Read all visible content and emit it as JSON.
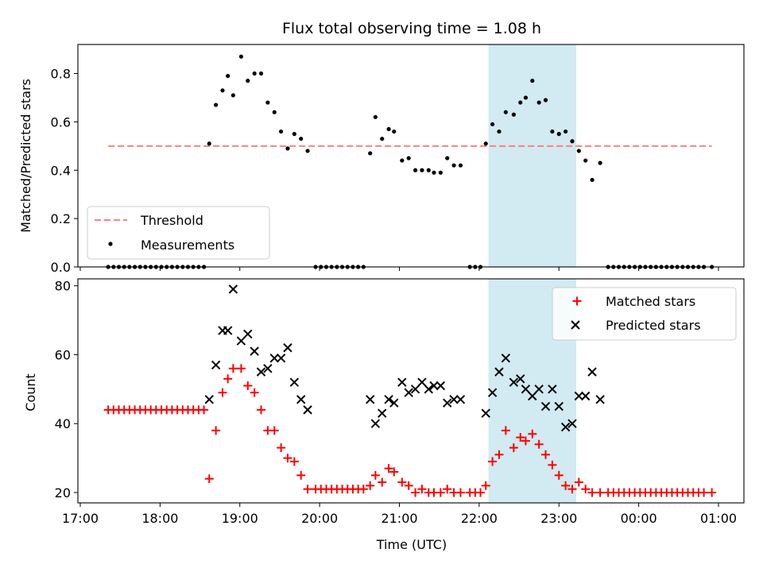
{
  "chart_data": [
    {
      "type": "scatter",
      "title": "Flux total observing time = 1.08 h",
      "ylabel": "Matched/Predicted stars",
      "xlim": [
        "17:00",
        "01:00"
      ],
      "ylim": [
        0,
        0.92
      ],
      "yticks": [
        "0.0",
        "0.2",
        "0.4",
        "0.6",
        "0.8"
      ],
      "ytick_values": [
        0,
        0.2,
        0.4,
        0.6,
        0.8
      ],
      "highlight_span": {
        "start": "22:07",
        "end": "23:13",
        "color": "#add8e6"
      },
      "legend_position": "lower-left",
      "threshold": {
        "name": "Threshold",
        "value": 0.5,
        "x_start": "17:21",
        "x_end": "00:55",
        "color": "#ff7f7f"
      },
      "series": [
        {
          "name": "Measurements",
          "color": "#000000",
          "points": [
            [
              "17:21",
              0
            ],
            [
              "17:25",
              0
            ],
            [
              "17:29",
              0
            ],
            [
              "17:33",
              0
            ],
            [
              "17:37",
              0
            ],
            [
              "17:41",
              0
            ],
            [
              "17:45",
              0
            ],
            [
              "17:49",
              0
            ],
            [
              "17:53",
              0
            ],
            [
              "17:57",
              0
            ],
            [
              "18:01",
              0
            ],
            [
              "18:05",
              0
            ],
            [
              "18:09",
              0
            ],
            [
              "18:13",
              0
            ],
            [
              "18:17",
              0
            ],
            [
              "18:21",
              0
            ],
            [
              "18:25",
              0
            ],
            [
              "18:29",
              0
            ],
            [
              "18:33",
              0
            ],
            [
              "18:37",
              0.51
            ],
            [
              "18:42",
              0.67
            ],
            [
              "18:47",
              0.73
            ],
            [
              "18:51",
              0.79
            ],
            [
              "18:55",
              0.71
            ],
            [
              "19:01",
              0.87
            ],
            [
              "19:06",
              0.77
            ],
            [
              "19:11",
              0.8
            ],
            [
              "19:16",
              0.8
            ],
            [
              "19:21",
              0.68
            ],
            [
              "19:26",
              0.64
            ],
            [
              "19:31",
              0.56
            ],
            [
              "19:36",
              0.49
            ],
            [
              "19:41",
              0.55
            ],
            [
              "19:46",
              0.53
            ],
            [
              "19:51",
              0.48
            ],
            [
              "19:57",
              0
            ],
            [
              "20:01",
              0
            ],
            [
              "20:05",
              0
            ],
            [
              "20:09",
              0
            ],
            [
              "20:13",
              0
            ],
            [
              "20:17",
              0
            ],
            [
              "20:21",
              0
            ],
            [
              "20:25",
              0
            ],
            [
              "20:29",
              0
            ],
            [
              "20:33",
              0
            ],
            [
              "20:38",
              0.47
            ],
            [
              "20:42",
              0.62
            ],
            [
              "20:47",
              0.53
            ],
            [
              "20:52",
              0.57
            ],
            [
              "20:56",
              0.56
            ],
            [
              "21:02",
              0.44
            ],
            [
              "21:07",
              0.45
            ],
            [
              "21:12",
              0.4
            ],
            [
              "21:17",
              0.4
            ],
            [
              "21:22",
              0.4
            ],
            [
              "21:26",
              0.39
            ],
            [
              "21:31",
              0.39
            ],
            [
              "21:36",
              0.45
            ],
            [
              "21:41",
              0.42
            ],
            [
              "21:46",
              0.42
            ],
            [
              "21:53",
              0
            ],
            [
              "21:57",
              0
            ],
            [
              "22:01",
              0
            ],
            [
              "22:05",
              0.51
            ],
            [
              "22:10",
              0.59
            ],
            [
              "22:15",
              0.56
            ],
            [
              "22:20",
              0.64
            ],
            [
              "22:26",
              0.63
            ],
            [
              "22:31",
              0.68
            ],
            [
              "22:35",
              0.7
            ],
            [
              "22:40",
              0.77
            ],
            [
              "22:45",
              0.68
            ],
            [
              "22:50",
              0.69
            ],
            [
              "22:55",
              0.56
            ],
            [
              "23:00",
              0.55
            ],
            [
              "23:05",
              0.56
            ],
            [
              "23:10",
              0.52
            ],
            [
              "23:15",
              0.48
            ],
            [
              "23:20",
              0.44
            ],
            [
              "23:25",
              0.36
            ],
            [
              "23:31",
              0.43
            ],
            [
              "23:37",
              0
            ],
            [
              "23:41",
              0
            ],
            [
              "23:45",
              0
            ],
            [
              "23:49",
              0
            ],
            [
              "23:53",
              0
            ],
            [
              "23:57",
              0
            ],
            [
              "00:01",
              0
            ],
            [
              "00:05",
              0
            ],
            [
              "00:09",
              0
            ],
            [
              "00:13",
              0
            ],
            [
              "00:17",
              0
            ],
            [
              "00:21",
              0
            ],
            [
              "00:25",
              0
            ],
            [
              "00:29",
              0
            ],
            [
              "00:33",
              0
            ],
            [
              "00:37",
              0
            ],
            [
              "00:41",
              0
            ],
            [
              "00:45",
              0
            ],
            [
              "00:49",
              0
            ],
            [
              "00:55",
              0
            ]
          ]
        }
      ]
    },
    {
      "type": "scatter",
      "xlabel": "Time (UTC)",
      "ylabel": "Count",
      "xlim": [
        "17:00",
        "01:00"
      ],
      "ylim": [
        17,
        82
      ],
      "xticks": [
        "17:00",
        "18:00",
        "19:00",
        "20:00",
        "21:00",
        "22:00",
        "23:00",
        "00:00",
        "01:00"
      ],
      "yticks": [
        "20",
        "40",
        "60",
        "80"
      ],
      "ytick_values": [
        20,
        40,
        60,
        80
      ],
      "highlight_span": {
        "start": "22:07",
        "end": "23:13",
        "color": "#add8e6"
      },
      "legend_position": "upper-right",
      "series": [
        {
          "name": "Matched stars",
          "marker": "plus",
          "color": "#ff0000",
          "points": [
            [
              "17:21",
              44
            ],
            [
              "17:25",
              44
            ],
            [
              "17:29",
              44
            ],
            [
              "17:33",
              44
            ],
            [
              "17:37",
              44
            ],
            [
              "17:41",
              44
            ],
            [
              "17:45",
              44
            ],
            [
              "17:49",
              44
            ],
            [
              "17:53",
              44
            ],
            [
              "17:57",
              44
            ],
            [
              "18:01",
              44
            ],
            [
              "18:05",
              44
            ],
            [
              "18:09",
              44
            ],
            [
              "18:13",
              44
            ],
            [
              "18:17",
              44
            ],
            [
              "18:21",
              44
            ],
            [
              "18:25",
              44
            ],
            [
              "18:29",
              44
            ],
            [
              "18:33",
              44
            ],
            [
              "18:37",
              24
            ],
            [
              "18:42",
              38
            ],
            [
              "18:47",
              49
            ],
            [
              "18:51",
              53
            ],
            [
              "18:55",
              56
            ],
            [
              "19:01",
              56
            ],
            [
              "19:06",
              51
            ],
            [
              "19:11",
              49
            ],
            [
              "19:16",
              44
            ],
            [
              "19:21",
              38
            ],
            [
              "19:26",
              38
            ],
            [
              "19:31",
              33
            ],
            [
              "19:36",
              30
            ],
            [
              "19:41",
              29
            ],
            [
              "19:46",
              25
            ],
            [
              "19:51",
              21
            ],
            [
              "19:57",
              21
            ],
            [
              "20:01",
              21
            ],
            [
              "20:05",
              21
            ],
            [
              "20:09",
              21
            ],
            [
              "20:13",
              21
            ],
            [
              "20:17",
              21
            ],
            [
              "20:21",
              21
            ],
            [
              "20:25",
              21
            ],
            [
              "20:29",
              21
            ],
            [
              "20:33",
              21
            ],
            [
              "20:38",
              22
            ],
            [
              "20:42",
              25
            ],
            [
              "20:47",
              23
            ],
            [
              "20:52",
              27
            ],
            [
              "20:56",
              26
            ],
            [
              "21:02",
              23
            ],
            [
              "21:07",
              22
            ],
            [
              "21:12",
              20
            ],
            [
              "21:17",
              21
            ],
            [
              "21:22",
              20
            ],
            [
              "21:26",
              20
            ],
            [
              "21:31",
              20
            ],
            [
              "21:36",
              21
            ],
            [
              "21:41",
              20
            ],
            [
              "21:46",
              20
            ],
            [
              "21:53",
              20
            ],
            [
              "21:57",
              20
            ],
            [
              "22:01",
              20
            ],
            [
              "22:05",
              22
            ],
            [
              "22:10",
              29
            ],
            [
              "22:15",
              31
            ],
            [
              "22:20",
              38
            ],
            [
              "22:26",
              33
            ],
            [
              "22:31",
              36
            ],
            [
              "22:35",
              35
            ],
            [
              "22:40",
              37
            ],
            [
              "22:45",
              34
            ],
            [
              "22:50",
              31
            ],
            [
              "22:55",
              28
            ],
            [
              "23:00",
              25
            ],
            [
              "23:05",
              22
            ],
            [
              "23:10",
              21
            ],
            [
              "23:15",
              23
            ],
            [
              "23:20",
              21
            ],
            [
              "23:25",
              20
            ],
            [
              "23:31",
              20
            ],
            [
              "23:37",
              20
            ],
            [
              "23:41",
              20
            ],
            [
              "23:45",
              20
            ],
            [
              "23:49",
              20
            ],
            [
              "23:53",
              20
            ],
            [
              "23:57",
              20
            ],
            [
              "00:01",
              20
            ],
            [
              "00:05",
              20
            ],
            [
              "00:09",
              20
            ],
            [
              "00:13",
              20
            ],
            [
              "00:17",
              20
            ],
            [
              "00:21",
              20
            ],
            [
              "00:25",
              20
            ],
            [
              "00:29",
              20
            ],
            [
              "00:33",
              20
            ],
            [
              "00:37",
              20
            ],
            [
              "00:41",
              20
            ],
            [
              "00:45",
              20
            ],
            [
              "00:49",
              20
            ],
            [
              "00:55",
              20
            ]
          ]
        },
        {
          "name": "Predicted stars",
          "marker": "x",
          "color": "#000000",
          "points": [
            [
              "18:37",
              47
            ],
            [
              "18:42",
              57
            ],
            [
              "18:47",
              67
            ],
            [
              "18:51",
              67
            ],
            [
              "18:55",
              79
            ],
            [
              "19:01",
              64
            ],
            [
              "19:06",
              66
            ],
            [
              "19:11",
              61
            ],
            [
              "19:16",
              55
            ],
            [
              "19:21",
              56
            ],
            [
              "19:26",
              59
            ],
            [
              "19:31",
              59
            ],
            [
              "19:36",
              62
            ],
            [
              "19:41",
              52
            ],
            [
              "19:46",
              47
            ],
            [
              "19:51",
              44
            ],
            [
              "20:38",
              47
            ],
            [
              "20:42",
              40
            ],
            [
              "20:47",
              43
            ],
            [
              "20:52",
              47
            ],
            [
              "20:56",
              46
            ],
            [
              "21:02",
              52
            ],
            [
              "21:07",
              49
            ],
            [
              "21:12",
              50
            ],
            [
              "21:17",
              52
            ],
            [
              "21:22",
              50
            ],
            [
              "21:26",
              51
            ],
            [
              "21:31",
              51
            ],
            [
              "21:36",
              46
            ],
            [
              "21:41",
              47
            ],
            [
              "21:46",
              47
            ],
            [
              "22:05",
              43
            ],
            [
              "22:10",
              49
            ],
            [
              "22:15",
              55
            ],
            [
              "22:20",
              59
            ],
            [
              "22:26",
              52
            ],
            [
              "22:31",
              53
            ],
            [
              "22:35",
              50
            ],
            [
              "22:40",
              48
            ],
            [
              "22:45",
              50
            ],
            [
              "22:50",
              45
            ],
            [
              "22:55",
              50
            ],
            [
              "23:00",
              45
            ],
            [
              "23:05",
              39
            ],
            [
              "23:10",
              40
            ],
            [
              "23:15",
              48
            ],
            [
              "23:20",
              48
            ],
            [
              "23:25",
              55
            ],
            [
              "23:31",
              47
            ]
          ]
        }
      ]
    }
  ]
}
